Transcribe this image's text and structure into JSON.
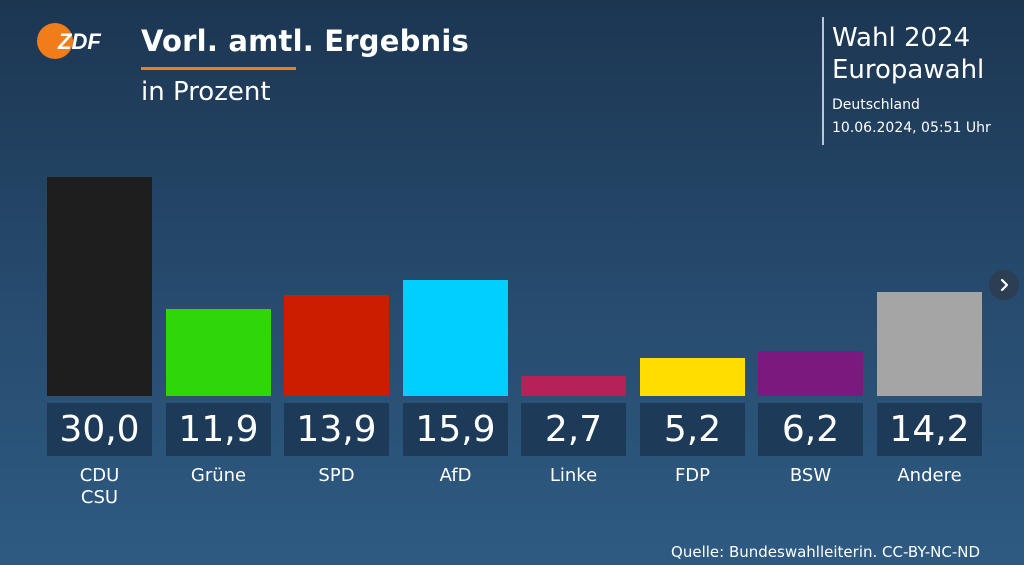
{
  "header": {
    "logo_text": "ZDF",
    "title": "Vorl. amtl. Ergebnis",
    "subtitle": "in Prozent"
  },
  "info": {
    "line1": "Wahl 2024",
    "line2": "Europawahl",
    "line3": "Deutschland",
    "line4": "10.06.2024, 05:51 Uhr"
  },
  "chart_data": {
    "type": "bar",
    "categories": [
      "CDU\nCSU",
      "Grüne",
      "SPD",
      "AfD",
      "Linke",
      "FDP",
      "BSW",
      "Andere"
    ],
    "values": [
      30.0,
      11.9,
      13.9,
      15.9,
      2.7,
      5.2,
      6.2,
      14.2
    ],
    "value_labels": [
      "30,0",
      "11,9",
      "13,9",
      "15,9",
      "2,7",
      "5,2",
      "6,2",
      "14,2"
    ],
    "colors": [
      "#1e1e1e",
      "#2ed60a",
      "#cc1d00",
      "#00cfff",
      "#b7215a",
      "#ffdd00",
      "#7a1a7e",
      "#a5a5a5"
    ],
    "title": "Vorl. amtl. Ergebnis",
    "ylabel": "in Prozent",
    "ylim": [
      0,
      30
    ],
    "grid": false,
    "legend": "none"
  },
  "nav": {
    "next_icon": "chevron-right-icon"
  },
  "source": "Quelle: Bundeswahlleiterin. CC-BY-NC-ND"
}
